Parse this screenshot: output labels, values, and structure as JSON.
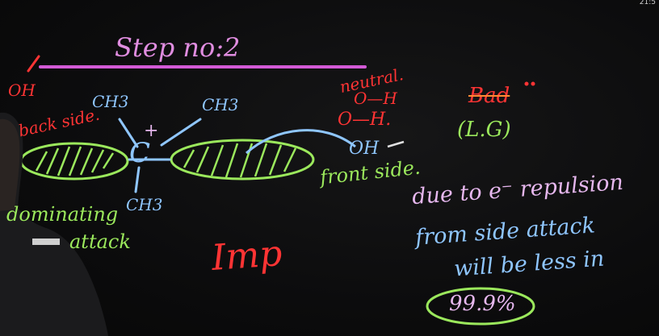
{
  "corner_counter": "21:5",
  "heading": "Step no:2",
  "left_oh": "OH",
  "back_side": "back side.",
  "ch3_top_left": "CH3",
  "ch3_top_right": "CH3",
  "ch3_bottom": "CH3",
  "carbon": "C",
  "plus": "+",
  "neutral": "neutral.",
  "o_h_1": "O—H",
  "o_h_2": "O—H.",
  "oh_front": "OH",
  "front_side": "front side.",
  "bad": "Bad",
  "lg": "(L.G)",
  "dominating": "dominating",
  "attack": "attack",
  "imp": "Imp",
  "note_line1": "due to e⁻ repulsion",
  "note_line2": "from side attack",
  "note_line3": "will be less in",
  "percent": "99.9%",
  "colors": {
    "heading": "#e08de0",
    "structure": "#8fc6ff",
    "red": "#ff3434",
    "green": "#9be85c"
  }
}
